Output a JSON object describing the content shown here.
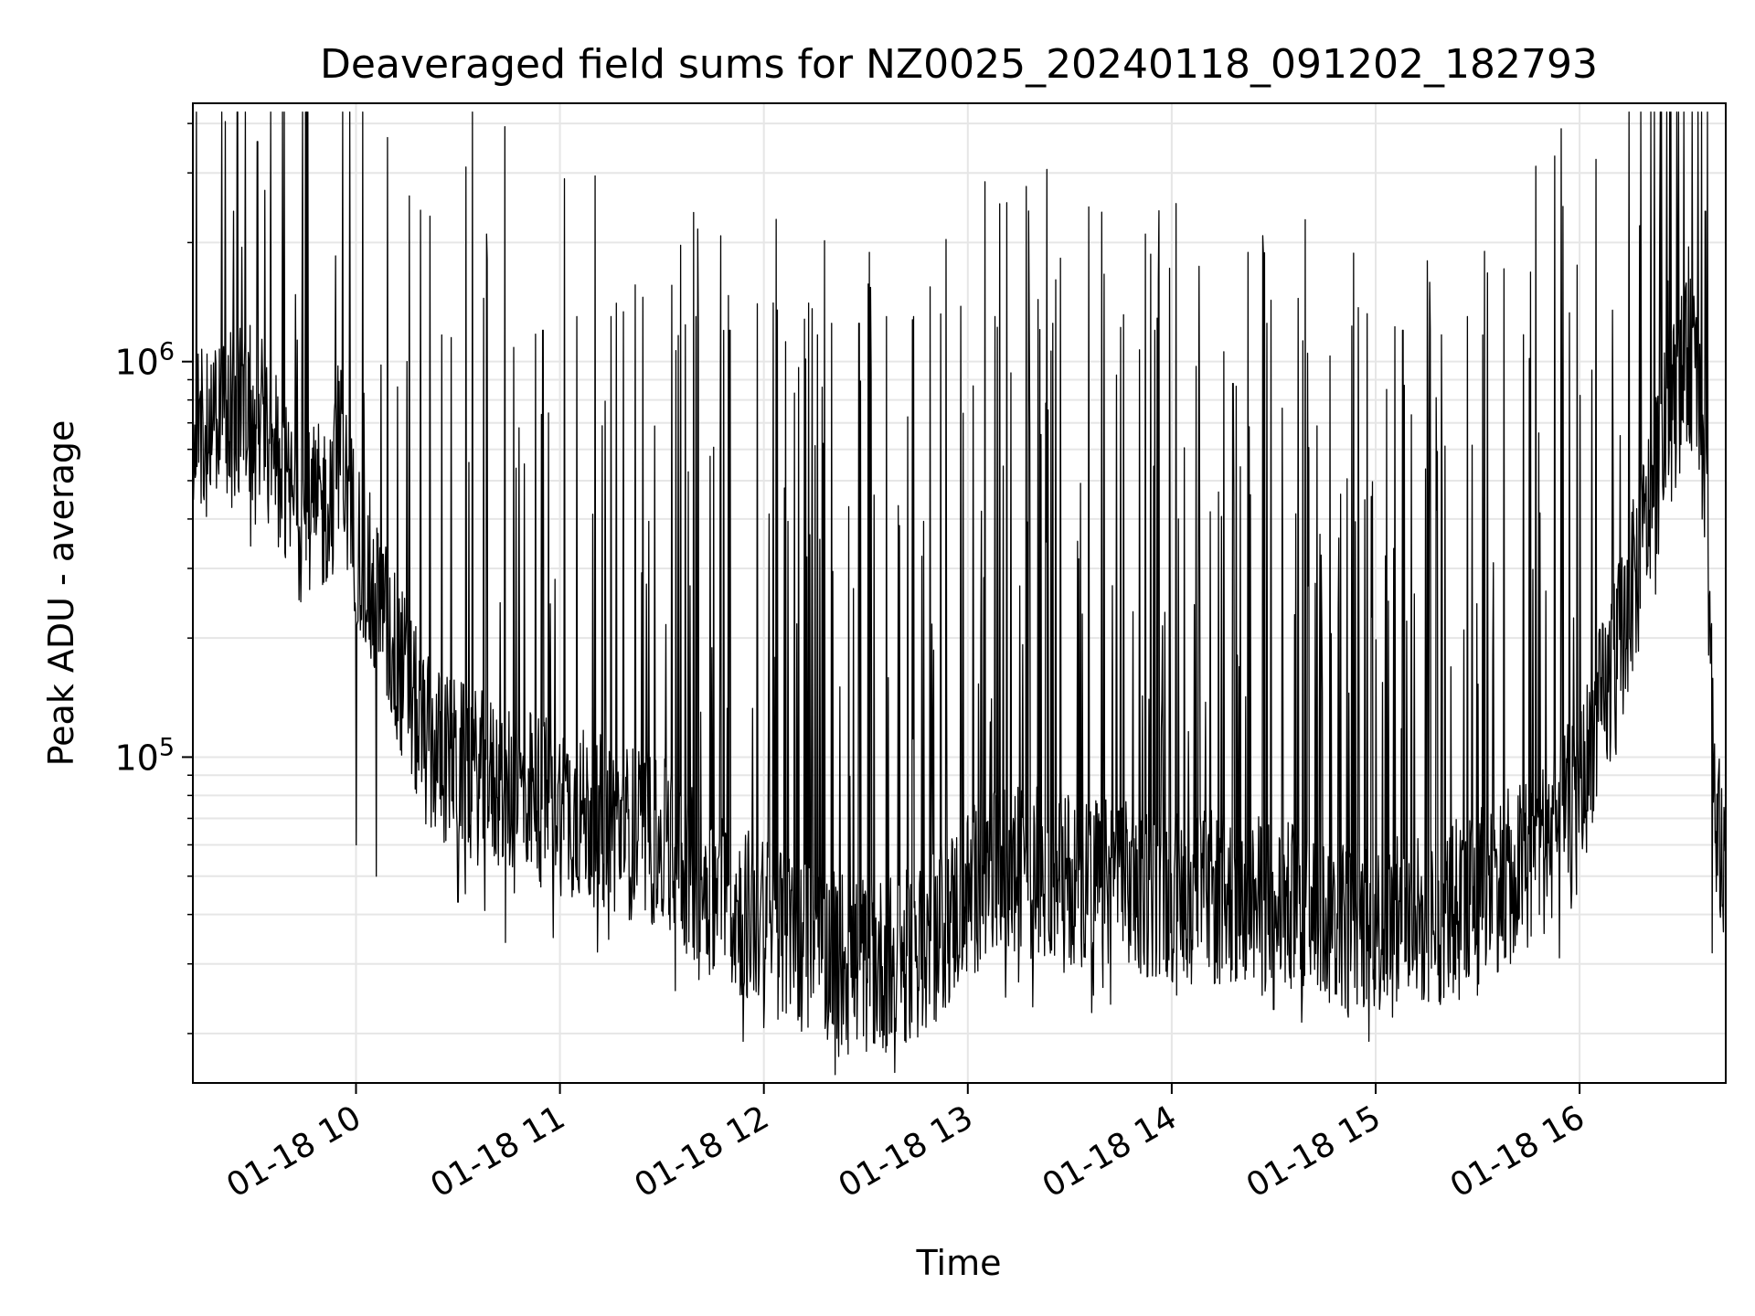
{
  "chart_data": {
    "type": "line",
    "title": "Deaveraged field sums for NZ0025_20240118_091202_182793",
    "xlabel": "Time",
    "ylabel": "Peak ADU - average",
    "yscale": "log",
    "ylim": [
      15000,
      4500000
    ],
    "xlim": [
      "2024-01-18 09:12",
      "2024-01-18 16:43"
    ],
    "grid": true,
    "line_color": "#000000",
    "grid_color": "#e6e6e6",
    "x_ticks": [
      {
        "value": "2024-01-18 10:00",
        "label": "01-18 10"
      },
      {
        "value": "2024-01-18 11:00",
        "label": "01-18 11"
      },
      {
        "value": "2024-01-18 12:00",
        "label": "01-18 12"
      },
      {
        "value": "2024-01-18 13:00",
        "label": "01-18 13"
      },
      {
        "value": "2024-01-18 14:00",
        "label": "01-18 14"
      },
      {
        "value": "2024-01-18 15:00",
        "label": "01-18 15"
      },
      {
        "value": "2024-01-18 16:00",
        "label": "01-18 16"
      }
    ],
    "y_ticks": [
      {
        "value": 100000,
        "base": "10",
        "exp": "5"
      },
      {
        "value": 1000000,
        "base": "10",
        "exp": "6"
      }
    ],
    "series": [
      {
        "x": [
          "2024-01-18 09:12",
          "2024-01-18 09:15",
          "2024-01-18 09:20",
          "2024-01-18 09:24",
          "2024-01-18 09:25",
          "2024-01-18 09:28",
          "2024-01-18 09:31",
          "2024-01-18 09:32",
          "2024-01-18 09:36",
          "2024-01-18 09:40",
          "2024-01-18 09:45",
          "2024-01-18 09:50",
          "2024-01-18 09:54",
          "2024-01-18 09:55",
          "2024-01-18 09:58",
          "2024-01-18 10:03",
          "2024-01-18 10:08",
          "2024-01-18 10:15",
          "2024-01-18 10:20",
          "2024-01-18 10:25",
          "2024-01-18 10:30",
          "2024-01-18 10:40",
          "2024-01-18 10:50",
          "2024-01-18 11:00",
          "2024-01-18 11:10",
          "2024-01-18 11:20",
          "2024-01-18 11:30",
          "2024-01-18 11:40",
          "2024-01-18 11:50",
          "2024-01-18 12:00",
          "2024-01-18 12:10",
          "2024-01-18 12:20",
          "2024-01-18 12:30",
          "2024-01-18 12:40",
          "2024-01-18 12:50",
          "2024-01-18 13:00",
          "2024-01-18 13:10",
          "2024-01-18 13:20",
          "2024-01-18 13:30",
          "2024-01-18 13:40",
          "2024-01-18 13:50",
          "2024-01-18 14:00",
          "2024-01-18 14:10",
          "2024-01-18 14:20",
          "2024-01-18 14:30",
          "2024-01-18 14:40",
          "2024-01-18 14:50",
          "2024-01-18 15:00",
          "2024-01-18 15:10",
          "2024-01-18 15:20",
          "2024-01-18 15:30",
          "2024-01-18 15:40",
          "2024-01-18 15:50",
          "2024-01-18 16:00",
          "2024-01-18 16:05",
          "2024-01-18 16:10",
          "2024-01-18 16:15",
          "2024-01-18 16:20",
          "2024-01-18 16:25",
          "2024-01-18 16:30",
          "2024-01-18 16:33",
          "2024-01-18 16:35",
          "2024-01-18 16:37",
          "2024-01-18 16:39",
          "2024-01-18 16:40",
          "2024-01-18 16:43"
        ],
        "baseline": [
          600000,
          650000,
          700000,
          720000,
          750000,
          760000,
          740000,
          720000,
          600000,
          450000,
          400000,
          420000,
          500000,
          650000,
          420000,
          300000,
          220000,
          150000,
          110000,
          100000,
          95000,
          85000,
          80000,
          75000,
          70000,
          65000,
          60000,
          50000,
          42000,
          38000,
          34000,
          32000,
          30000,
          30000,
          35000,
          45000,
          50000,
          52000,
          50000,
          48000,
          46000,
          45000,
          44000,
          43000,
          42000,
          40000,
          38000,
          37000,
          38000,
          40000,
          45000,
          50000,
          60000,
          80000,
          120000,
          170000,
          250000,
          400000,
          650000,
          900000,
          1000000,
          800000,
          500000,
          150000,
          55000,
          70000
        ],
        "spikes": [
          [
            "2024-01-18 09:24",
            2400000
          ],
          [
            "2024-01-18 09:31",
            3600000
          ],
          [
            "2024-01-18 09:54",
            1850000
          ],
          [
            "2024-01-18 10:15",
            1000000
          ],
          [
            "2024-01-18 10:28",
            1150000
          ],
          [
            "2024-01-18 10:48",
            680000
          ],
          [
            "2024-01-18 10:55",
            1200000
          ],
          [
            "2024-01-18 11:05",
            1300000
          ],
          [
            "2024-01-18 11:15",
            1300000
          ],
          [
            "2024-01-18 11:40",
            1300000
          ],
          [
            "2024-01-18 11:50",
            1200000
          ],
          [
            "2024-01-18 11:58",
            1400000
          ],
          [
            "2024-01-18 12:04",
            1350000
          ],
          [
            "2024-01-18 12:12",
            1280000
          ],
          [
            "2024-01-18 12:20",
            1250000
          ],
          [
            "2024-01-18 12:28",
            1250000
          ],
          [
            "2024-01-18 12:36",
            1300000
          ],
          [
            "2024-01-18 12:44",
            1300000
          ],
          [
            "2024-01-18 12:52",
            1320000
          ],
          [
            "2024-01-18 12:58",
            1380000
          ],
          [
            "2024-01-18 13:08",
            1300000
          ],
          [
            "2024-01-18 13:18",
            1330000
          ],
          [
            "2024-01-18 13:25",
            1250000
          ],
          [
            "2024-01-18 13:45",
            1220000
          ],
          [
            "2024-01-18 13:55",
            1200000
          ],
          [
            "2024-01-18 14:02",
            400000
          ],
          [
            "2024-01-18 14:18",
            880000
          ],
          [
            "2024-01-18 14:28",
            1250000
          ],
          [
            "2024-01-18 14:40",
            1050000
          ],
          [
            "2024-01-18 14:53",
            1230000
          ],
          [
            "2024-01-18 15:08",
            1200000
          ],
          [
            "2024-01-18 15:16",
            1200000
          ],
          [
            "2024-01-18 15:27",
            1300000
          ],
          [
            "2024-01-18 15:32",
            1900000
          ],
          [
            "2024-01-18 15:48",
            660000
          ],
          [
            "2024-01-18 16:12",
            650000
          ],
          [
            "2024-01-18 16:26",
            1600000
          ],
          [
            "2024-01-18 16:32",
            1950000
          ],
          [
            "2024-01-18 16:37",
            2400000
          ]
        ],
        "dips": [
          [
            "2024-01-18 10:00",
            60000
          ],
          [
            "2024-01-18 10:06",
            50000
          ],
          [
            "2024-01-18 10:30",
            43000
          ],
          [
            "2024-01-18 10:44",
            34000
          ],
          [
            "2024-01-18 11:32",
            40000
          ],
          [
            "2024-01-18 11:55",
            25000
          ],
          [
            "2024-01-18 12:22",
            22000
          ],
          [
            "2024-01-18 12:22",
            17500
          ],
          [
            "2024-01-18 12:37",
            20000
          ],
          [
            "2024-01-18 12:43",
            19500
          ],
          [
            "2024-01-18 13:15",
            27000
          ],
          [
            "2024-01-18 13:37",
            25000
          ],
          [
            "2024-01-18 14:30",
            23000
          ],
          [
            "2024-01-18 14:52",
            22000
          ],
          [
            "2024-01-18 15:05",
            22000
          ],
          [
            "2024-01-18 15:30",
            25000
          ],
          [
            "2024-01-18 16:39",
            32000
          ]
        ]
      }
    ]
  }
}
